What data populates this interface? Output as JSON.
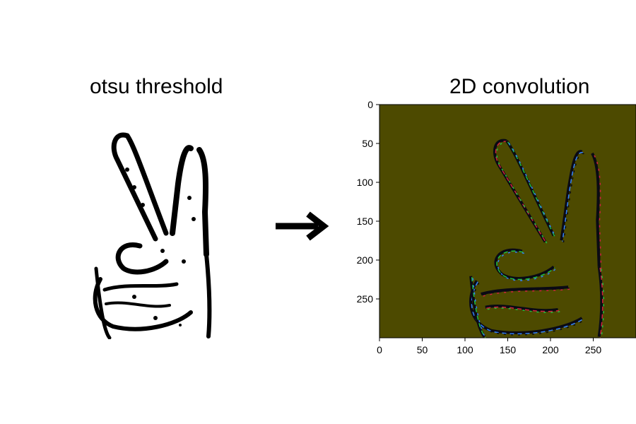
{
  "figure": {
    "left_title": "otsu threshold",
    "right_title": "2D convolution"
  },
  "arrow": {
    "icon": "right-arrow-icon",
    "color": "#000000"
  },
  "chart_data": {
    "type": "heatmap",
    "title": "2D convolution",
    "xlabel": "",
    "ylabel": "",
    "xlim": [
      0,
      300
    ],
    "ylim": [
      300,
      0
    ],
    "x_ticks": [
      0,
      50,
      100,
      150,
      200,
      250
    ],
    "y_ticks": [
      0,
      50,
      100,
      150,
      200,
      250
    ],
    "background_color": "#4d4a00",
    "edge_colors": [
      "#0a0a14",
      "#d02040",
      "#20c040",
      "#3080ff"
    ],
    "grid": false
  }
}
